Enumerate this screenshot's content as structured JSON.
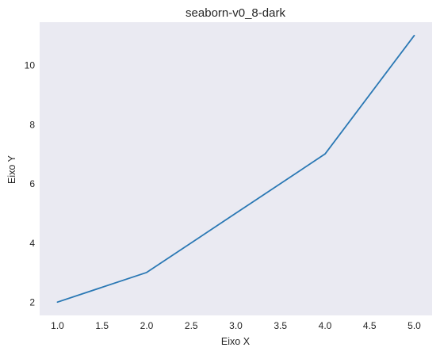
{
  "chart_data": {
    "type": "line",
    "title": "seaborn-v0_8-dark",
    "xlabel": "Eixo X",
    "ylabel": "Eixo Y",
    "x": [
      1,
      2,
      3,
      4,
      5
    ],
    "series": [
      {
        "values": [
          2,
          3,
          5,
          7,
          11
        ],
        "color": "#2a78b4"
      }
    ],
    "xlim": [
      0.8,
      5.2
    ],
    "ylim": [
      1.55,
      11.45
    ],
    "xticks": [
      "1.0",
      "1.5",
      "2.0",
      "2.5",
      "3.0",
      "3.5",
      "4.0",
      "4.5",
      "5.0"
    ],
    "yticks": [
      "2",
      "4",
      "6",
      "8",
      "10"
    ],
    "grid": false,
    "background_color": "#eaeaf2"
  }
}
